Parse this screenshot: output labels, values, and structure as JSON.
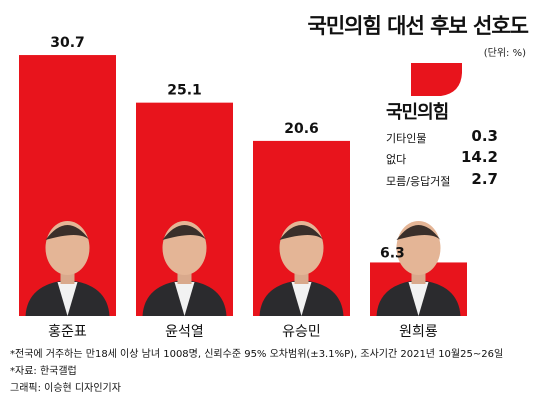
{
  "chart_data": {
    "type": "bar",
    "title": "국민의힘 대선 후보 선호도",
    "unit": "(단위: %)",
    "categories": [
      "홍준표",
      "윤석열",
      "유승민",
      "원희룡"
    ],
    "values": [
      30.7,
      25.1,
      20.6,
      6.3
    ],
    "value_labels": [
      "30.7",
      "25.1",
      "20.6",
      "6.3"
    ],
    "ylim": [
      0,
      32
    ],
    "bar_color": "#e8141c",
    "grid": false,
    "legend": "none"
  },
  "party": {
    "name": "국민의힘",
    "logo_color": "#e8141c"
  },
  "others": [
    {
      "label": "기타인물",
      "value": "0.3"
    },
    {
      "label": "없다",
      "value": "14.2"
    },
    {
      "label": "모름/응답거절",
      "value": "2.7"
    }
  ],
  "notes": [
    "*전국에 거주하는 만18세 이상 남녀 1008명, 신뢰수준 95% 오차범위(±3.1%P), 조사기간 2021년 10월25~26일",
    "*자료: 한국갤럽",
    "그래픽: 이승현 디자인기자"
  ]
}
